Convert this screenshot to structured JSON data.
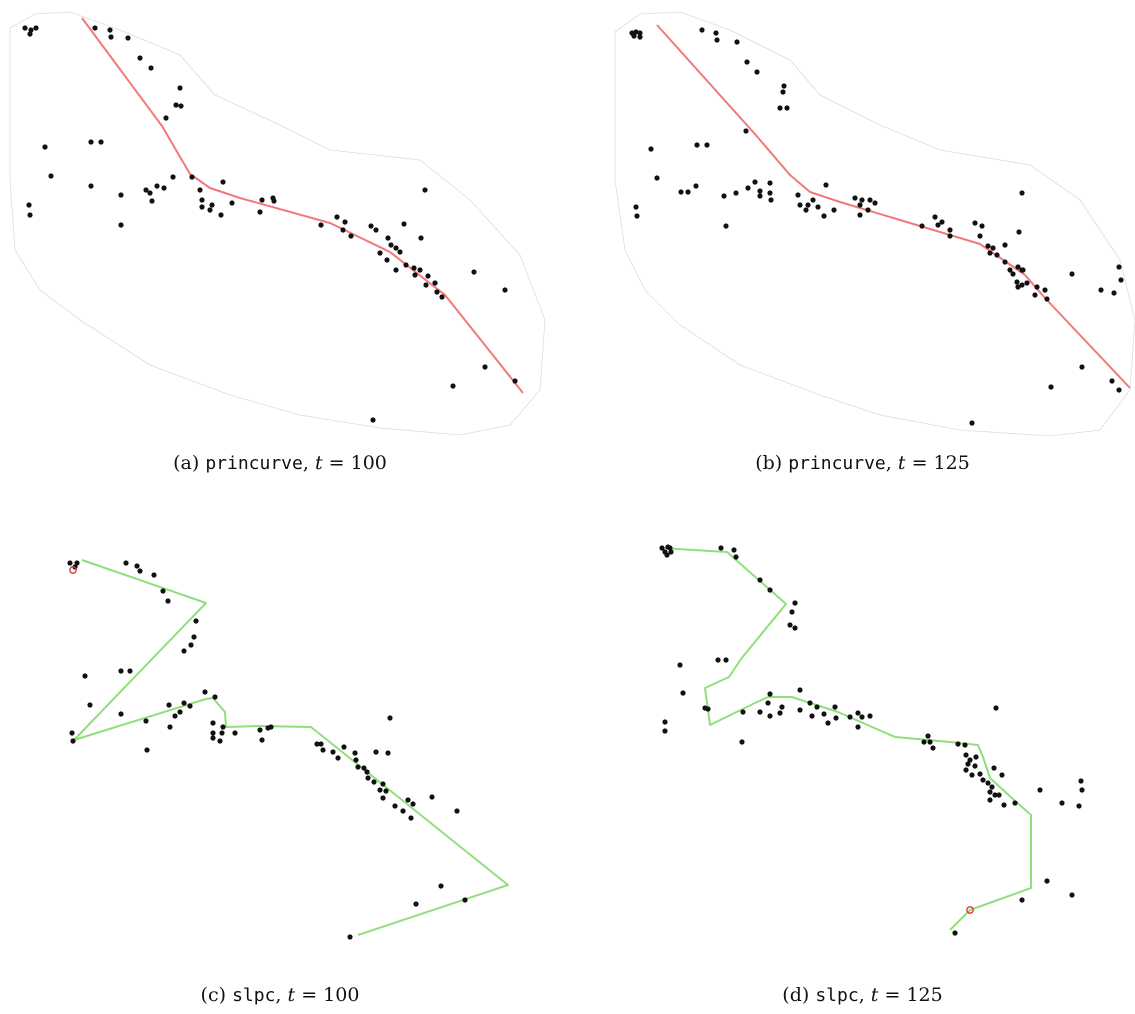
{
  "colors": {
    "point": "#111111",
    "principal_curve": "#f07a7a",
    "slpc_curve": "#8fe07a",
    "hull": "#dcdcdc",
    "start_marker": "#e03030"
  },
  "panels": [
    {
      "id": "a",
      "caption": {
        "label": "(a)",
        "method": "princurve",
        "sep": ",",
        "var": "t",
        "eq": "=",
        "value": "100"
      }
    },
    {
      "id": "b",
      "caption": {
        "label": "(b)",
        "method": "princurve",
        "sep": ",",
        "var": "t",
        "eq": "=",
        "value": "125"
      }
    },
    {
      "id": "c",
      "caption": {
        "label": "(c)",
        "method": "slpc",
        "sep": ",",
        "var": "t",
        "eq": "=",
        "value": "100"
      }
    },
    {
      "id": "d",
      "caption": {
        "label": "(d)",
        "method": "slpc",
        "sep": ",",
        "var": "t",
        "eq": "=",
        "value": "125"
      }
    }
  ]
}
